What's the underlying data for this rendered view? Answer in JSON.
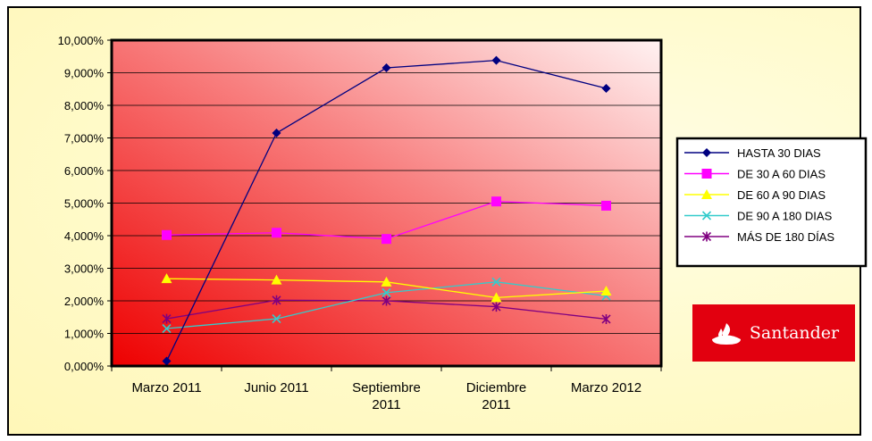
{
  "chart_data": {
    "type": "line",
    "categories": [
      "Marzo 2011",
      "Junio 2011",
      "Septiembre 2011",
      "Diciembre 2011",
      "Marzo 2012"
    ],
    "category_lines": [
      [
        "Marzo 2011"
      ],
      [
        "Junio 2011"
      ],
      [
        "Septiembre",
        "2011"
      ],
      [
        "Diciembre",
        "2011"
      ],
      [
        "Marzo 2012"
      ]
    ],
    "ylim": [
      0,
      10
    ],
    "yticks": [
      "0,000%",
      "1,000%",
      "2,000%",
      "3,000%",
      "4,000%",
      "5,000%",
      "6,000%",
      "7,000%",
      "8,000%",
      "9,000%",
      "10,000%"
    ],
    "grid": true,
    "legend_position": "right",
    "series": [
      {
        "name": "HASTA 30 DIAS",
        "color": "#000080",
        "marker": "diamond",
        "values": [
          0.15,
          7.15,
          9.15,
          9.38,
          8.52
        ]
      },
      {
        "name": "DE 30 A 60 DIAS",
        "color": "#ff00ff",
        "marker": "square",
        "values": [
          4.02,
          4.09,
          3.9,
          5.05,
          4.92
        ]
      },
      {
        "name": "DE 60 A 90 DIAS",
        "color": "#ffff00",
        "marker": "triangle",
        "values": [
          2.68,
          2.64,
          2.58,
          2.1,
          2.3
        ]
      },
      {
        "name": "DE 90 A 180 DIAS",
        "color": "#33cccc",
        "marker": "x",
        "values": [
          1.15,
          1.45,
          2.25,
          2.58,
          2.15
        ]
      },
      {
        "name": "MÁS DE 180 DÍAS",
        "color": "#800080",
        "marker": "star",
        "values": [
          1.45,
          2.02,
          2.0,
          1.82,
          1.44
        ]
      }
    ]
  },
  "logo": {
    "name": "Santander",
    "icon": "flame-icon",
    "color": "#e2000f"
  }
}
